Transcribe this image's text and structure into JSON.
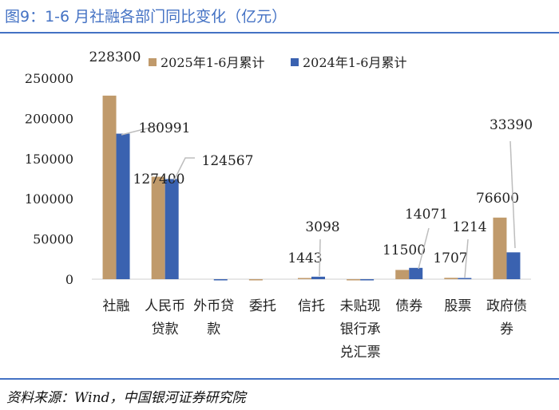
{
  "page": {
    "title": "图9：1-6 月社融各部门同比变化（亿元）",
    "source": "资料来源：Wind，中国银河证券研究院"
  },
  "chart_data": {
    "type": "bar",
    "title": "",
    "xlabel": "",
    "ylabel": "",
    "ylim": [
      0,
      250000
    ],
    "yticks": [
      0,
      50000,
      100000,
      150000,
      200000,
      250000
    ],
    "grid": false,
    "legend_position": "top",
    "categories": [
      [
        "社融"
      ],
      [
        "人民币",
        "贷款"
      ],
      [
        "外币贷",
        "款"
      ],
      [
        "委托"
      ],
      [
        "信托"
      ],
      [
        "未贴现",
        "银行承",
        "兑汇票"
      ],
      [
        "债券"
      ],
      [
        "股票"
      ],
      [
        "政府债",
        "券"
      ]
    ],
    "series": [
      {
        "name": "2025年1-6月累计",
        "color": "#c09a6b",
        "values": [
          228300,
          127400,
          0,
          -500,
          1443,
          -100,
          11500,
          1707,
          76600
        ],
        "labels": [
          "228300",
          "127400",
          "",
          "",
          "1443",
          "",
          "11500",
          "1707",
          "76600"
        ]
      },
      {
        "name": "2024年1-6月累计",
        "color": "#3a62b0",
        "values": [
          180991,
          124567,
          -200,
          0,
          3098,
          -1500,
          14071,
          1214,
          33390
        ],
        "labels": [
          "180991",
          "124567",
          "",
          "",
          "3098",
          "",
          "14071",
          "1214",
          "33390"
        ]
      }
    ]
  }
}
